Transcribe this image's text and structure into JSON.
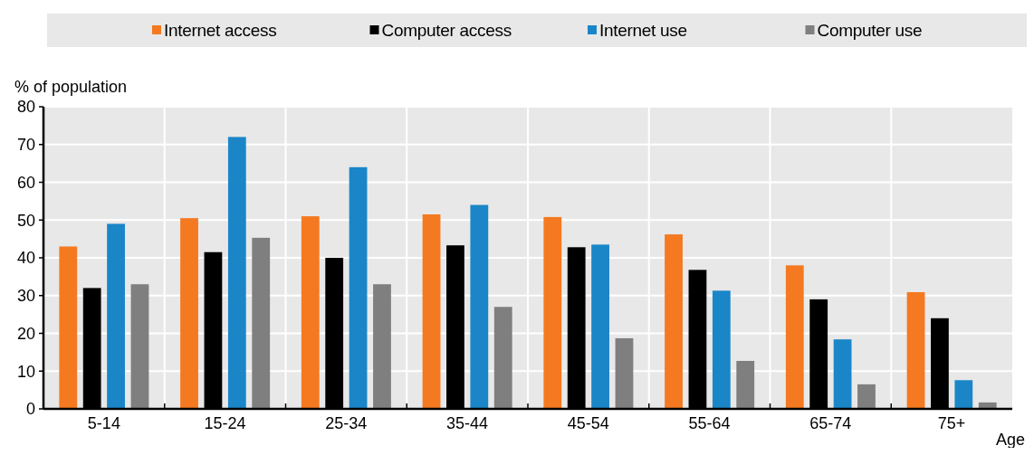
{
  "chart_data": {
    "type": "bar",
    "ylabel": "% of population",
    "xlabel": "Age",
    "categories": [
      "5-14",
      "15-24",
      "25-34",
      "35-44",
      "45-54",
      "55-64",
      "65-74",
      "75+"
    ],
    "series": [
      {
        "name": "Internet access",
        "color": "#f47920",
        "values": [
          43,
          50.5,
          51,
          51.5,
          50.8,
          46.2,
          38,
          30.9
        ]
      },
      {
        "name": "Computer access",
        "color": "#000000",
        "values": [
          32,
          41.5,
          40,
          43.3,
          42.8,
          36.8,
          29,
          24
        ]
      },
      {
        "name": "Internet use",
        "color": "#1a86c8",
        "values": [
          49,
          72,
          64,
          54,
          43.5,
          31.3,
          18.4,
          7.6
        ]
      },
      {
        "name": "Computer use",
        "color": "#7f7f7f",
        "values": [
          33,
          45.3,
          33,
          27,
          18.7,
          12.7,
          6.5,
          1.7
        ]
      }
    ],
    "ylim": [
      0,
      80
    ],
    "yticks": [
      0,
      10,
      20,
      30,
      40,
      50,
      60,
      70,
      80
    ],
    "grid": true,
    "legend": "top"
  }
}
